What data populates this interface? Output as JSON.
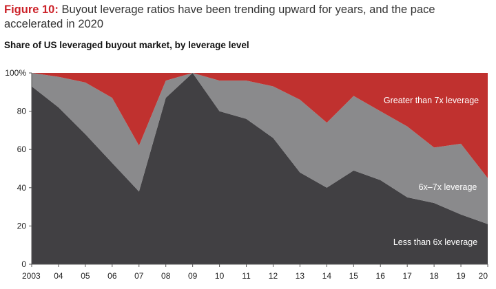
{
  "figure": {
    "label": "Figure 10:",
    "title": "Buyout leverage ratios have been trending upward for years, and the pace accelerated in 2020"
  },
  "chart_data": {
    "type": "area",
    "stacked": true,
    "subtitle": "Share of US leveraged buyout market, by leverage level",
    "x": [
      "2003",
      "04",
      "05",
      "06",
      "07",
      "08",
      "09",
      "10",
      "11",
      "12",
      "13",
      "14",
      "15",
      "16",
      "17",
      "18",
      "19",
      "20"
    ],
    "ylim": [
      0,
      100
    ],
    "yticks": [
      "100%",
      "80",
      "60",
      "40",
      "20",
      "0"
    ],
    "ytick_values": [
      100,
      80,
      60,
      40,
      20,
      0
    ],
    "series": [
      {
        "name": "Less than 6x leverage",
        "color": "#414043",
        "values": [
          93,
          82,
          68,
          53,
          38,
          87,
          100,
          80,
          76,
          66,
          48,
          40,
          49,
          44,
          35,
          32,
          26,
          21
        ]
      },
      {
        "name": "6x–7x leverage",
        "color": "#8a8a8c",
        "values": [
          7,
          16,
          27,
          34,
          24,
          9,
          0,
          16,
          20,
          27,
          38,
          34,
          39,
          36,
          37,
          29,
          37,
          24
        ]
      },
      {
        "name": "Greater than 7x leverage",
        "color": "#c0312f",
        "values": [
          0,
          2,
          5,
          13,
          38,
          4,
          0,
          4,
          4,
          7,
          14,
          26,
          12,
          20,
          28,
          39,
          37,
          55
        ]
      }
    ],
    "grid": false,
    "legend": "in-area labels"
  }
}
